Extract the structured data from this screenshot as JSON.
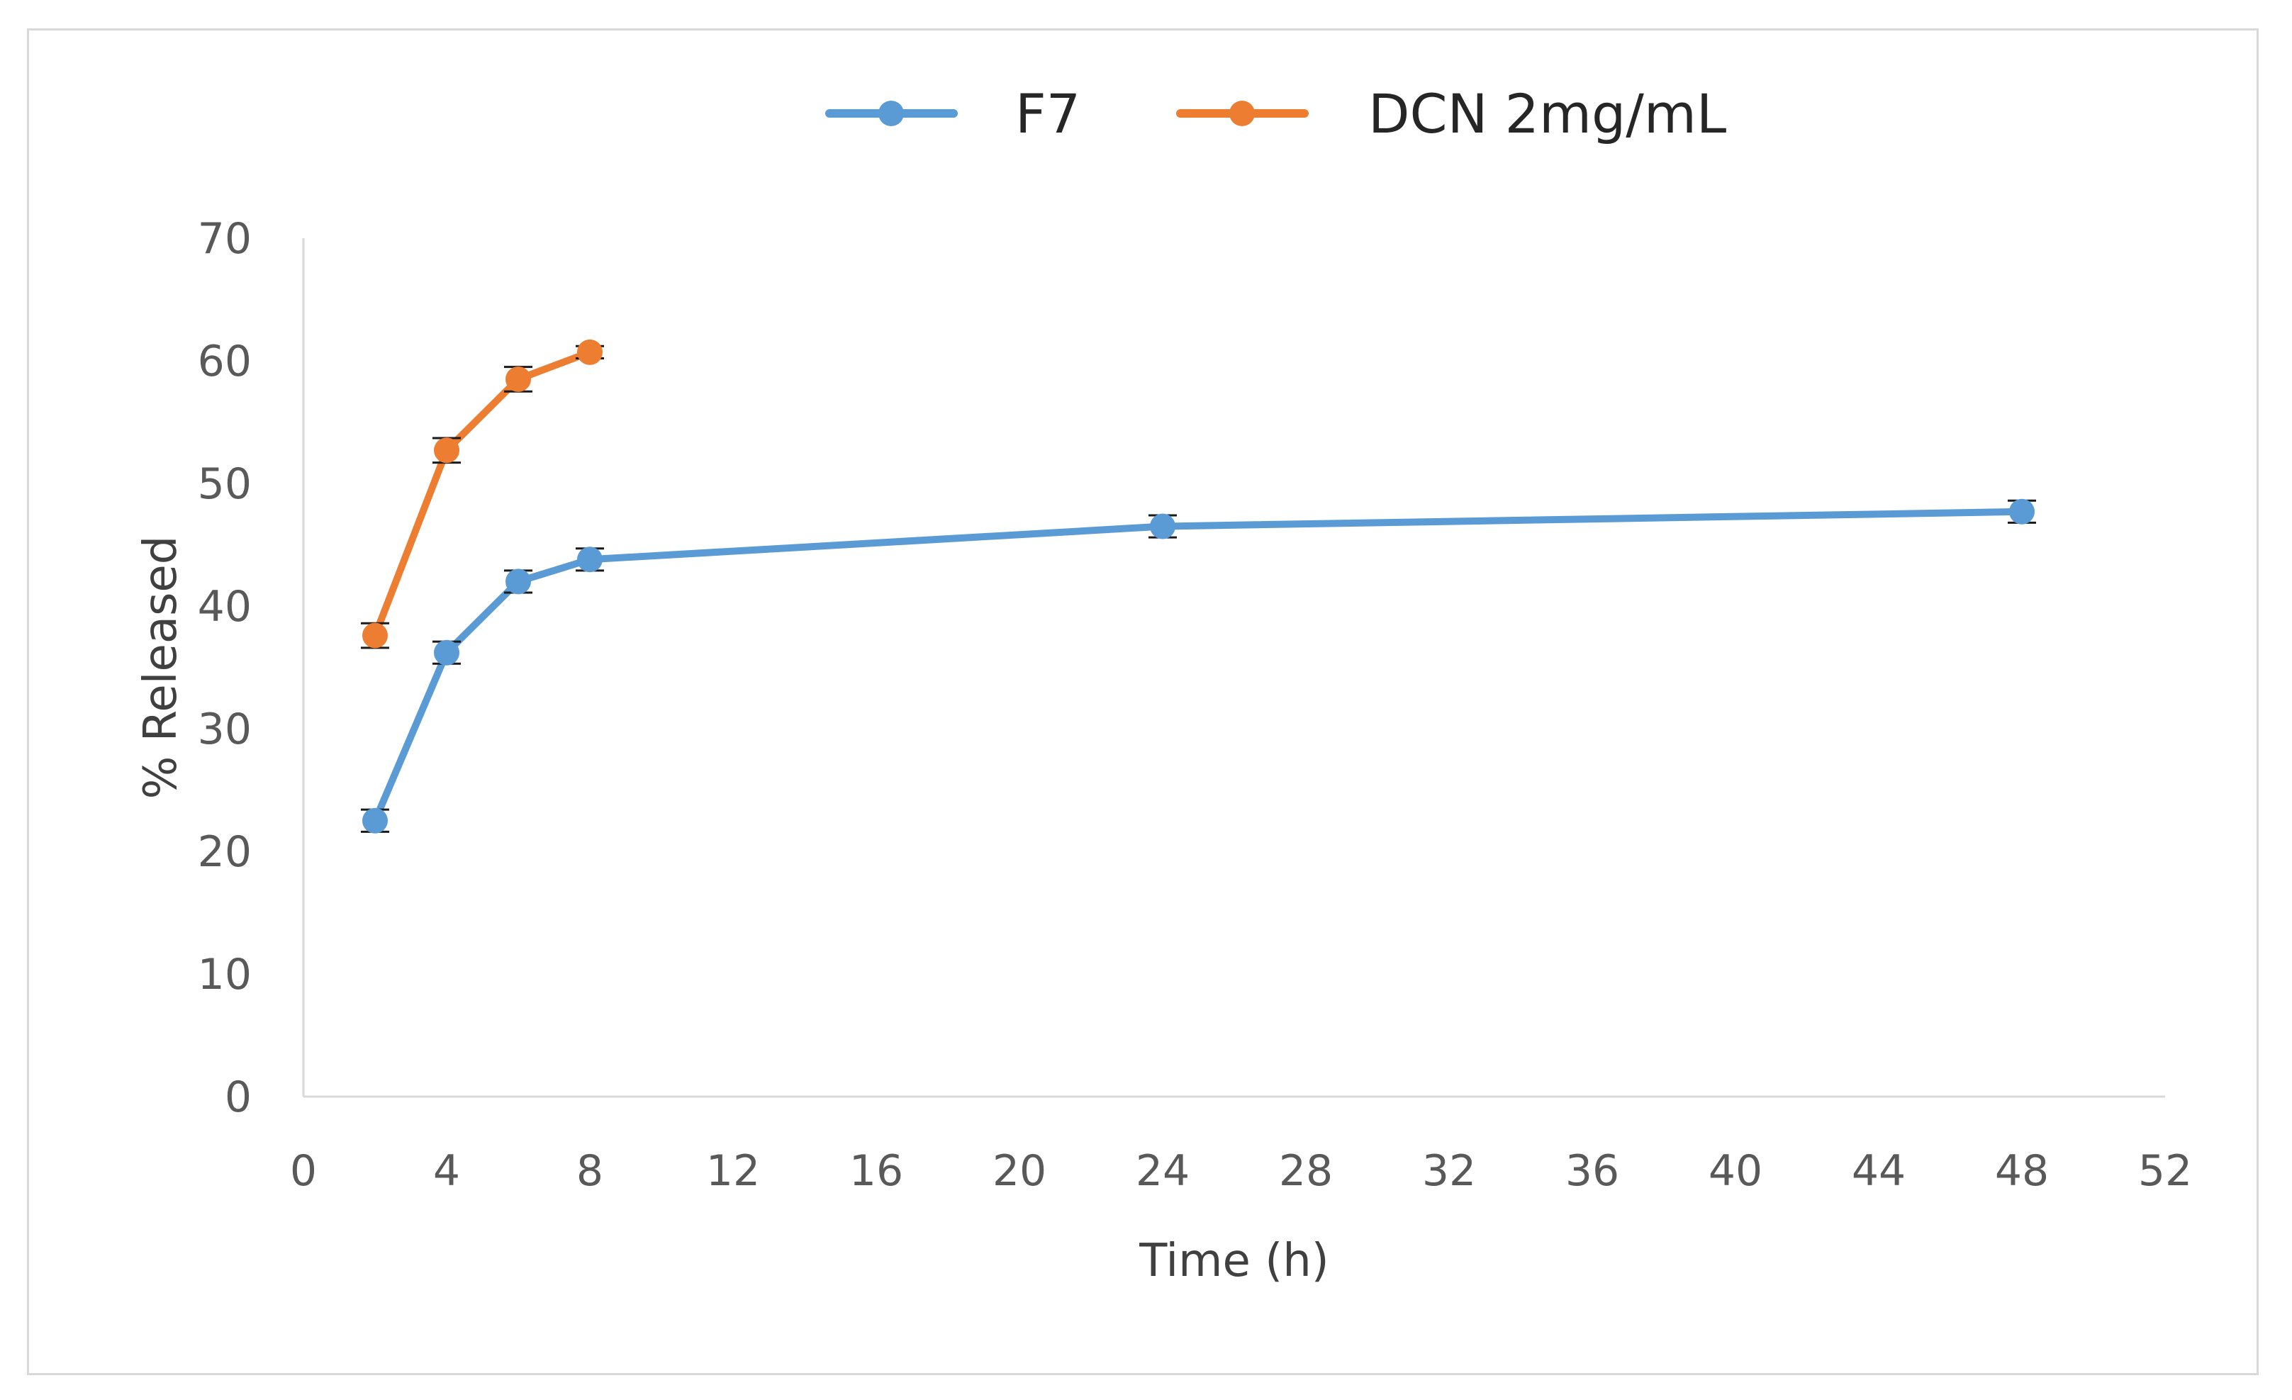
{
  "chart_data": {
    "type": "line",
    "title": "",
    "xlabel": "Time (h)",
    "ylabel": "% Released",
    "xlim": [
      0,
      52
    ],
    "ylim": [
      0,
      70
    ],
    "xticks": [
      0,
      4,
      8,
      12,
      16,
      20,
      24,
      28,
      32,
      36,
      40,
      44,
      48,
      52
    ],
    "yticks": [
      0,
      10,
      20,
      30,
      40,
      50,
      60,
      70
    ],
    "grid": false,
    "legend_position": "top-center",
    "series": [
      {
        "name": "F7",
        "color": "#5b9bd5",
        "x": [
          2,
          4,
          6,
          8,
          24,
          48
        ],
        "values": [
          22.5,
          36.2,
          42.0,
          43.8,
          46.5,
          47.7
        ],
        "error": [
          0.9,
          0.9,
          0.9,
          0.9,
          0.9,
          0.9
        ]
      },
      {
        "name": "DCN 2mg/mL",
        "color": "#ed7d31",
        "x": [
          2,
          4,
          6,
          8
        ],
        "values": [
          37.6,
          52.7,
          58.5,
          60.7
        ],
        "error": [
          1.0,
          1.0,
          1.0,
          0.5
        ]
      }
    ]
  }
}
